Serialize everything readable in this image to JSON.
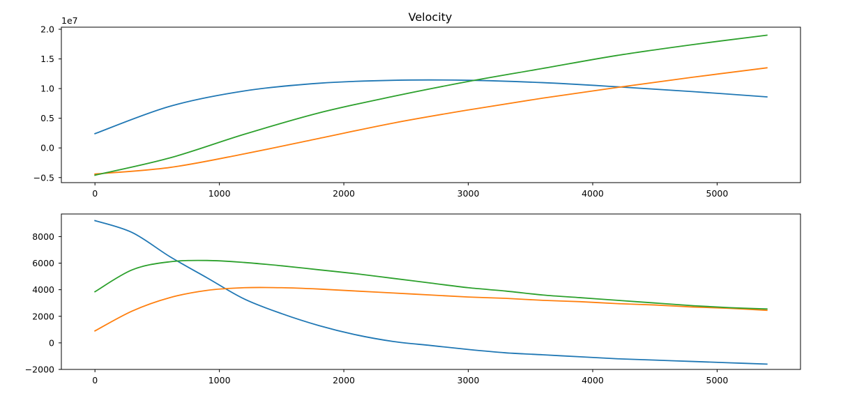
{
  "chart_data": [
    {
      "type": "line",
      "title": "Velocity",
      "xlabel": "",
      "ylabel": "",
      "offset_text": "1e7",
      "xlim": [
        -270,
        5670
      ],
      "ylim": [
        -5.85,
        20.35
      ],
      "xticks": [
        0,
        1000,
        2000,
        3000,
        4000,
        5000
      ],
      "xtick_labels": [
        "0",
        "1000",
        "2000",
        "3000",
        "4000",
        "5000"
      ],
      "yticks": [
        -5,
        0,
        5,
        10,
        15,
        20
      ],
      "ytick_labels": [
        "−0.5",
        "0.0",
        "0.5",
        "1.0",
        "1.5",
        "2.0"
      ],
      "y_unit_multiplier": 1000000,
      "grid": false,
      "x": [
        0,
        600,
        1200,
        1800,
        2400,
        3000,
        3600,
        4200,
        4800,
        5400
      ],
      "series": [
        {
          "color": "#1f77b4",
          "values": [
            2.4,
            7.0,
            9.6,
            10.9,
            11.4,
            11.4,
            11.0,
            10.3,
            9.5,
            8.6
          ]
        },
        {
          "color": "#ff7f0e",
          "values": [
            -4.4,
            -3.3,
            -1.0,
            1.6,
            4.2,
            6.4,
            8.4,
            10.2,
            11.9,
            13.5
          ]
        },
        {
          "color": "#2ca02c",
          "values": [
            -4.6,
            -1.7,
            2.3,
            5.9,
            8.7,
            11.2,
            13.4,
            15.6,
            17.4,
            19.0
          ]
        }
      ]
    },
    {
      "type": "line",
      "title": "",
      "xlabel": "",
      "ylabel": "",
      "xlim": [
        -270,
        5670
      ],
      "ylim": [
        -2000,
        9700
      ],
      "xticks": [
        0,
        1000,
        2000,
        3000,
        4000,
        5000
      ],
      "xtick_labels": [
        "0",
        "1000",
        "2000",
        "3000",
        "4000",
        "5000"
      ],
      "yticks": [
        -2000,
        0,
        2000,
        4000,
        6000,
        8000
      ],
      "ytick_labels": [
        "−2000",
        "0",
        "2000",
        "4000",
        "6000",
        "8000"
      ],
      "grid": false,
      "x": [
        0,
        300,
        600,
        900,
        1200,
        1500,
        1800,
        2100,
        2400,
        2700,
        3000,
        3300,
        3600,
        3900,
        4200,
        4500,
        4800,
        5100,
        5400
      ],
      "series": [
        {
          "color": "#1f77b4",
          "values": [
            9200,
            8300,
            6500,
            4900,
            3300,
            2200,
            1300,
            600,
            100,
            -200,
            -500,
            -750,
            -900,
            -1050,
            -1200,
            -1300,
            -1400,
            -1500,
            -1600
          ]
        },
        {
          "color": "#ff7f0e",
          "values": [
            900,
            2400,
            3400,
            3950,
            4150,
            4150,
            4050,
            3900,
            3750,
            3600,
            3450,
            3350,
            3200,
            3100,
            2950,
            2850,
            2700,
            2600,
            2450
          ]
        },
        {
          "color": "#2ca02c",
          "values": [
            3850,
            5500,
            6100,
            6200,
            6050,
            5800,
            5500,
            5200,
            4850,
            4500,
            4150,
            3900,
            3600,
            3400,
            3200,
            3000,
            2800,
            2650,
            2550
          ]
        }
      ]
    }
  ]
}
